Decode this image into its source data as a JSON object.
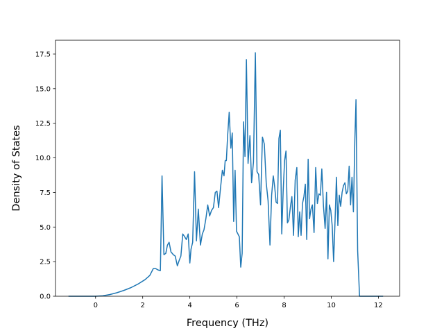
{
  "chart_data": {
    "type": "line",
    "title": "",
    "xlabel": "Frequency (THz)",
    "ylabel": "Density of States",
    "xlim": [
      -1.7,
      12.9
    ],
    "ylim": [
      0,
      18.5
    ],
    "xticks": [
      0,
      2,
      4,
      6,
      8,
      10,
      12
    ],
    "xtick_labels": [
      "0",
      "2",
      "4",
      "6",
      "8",
      "10",
      "12"
    ],
    "yticks": [
      0,
      2.5,
      5,
      7.5,
      10,
      12.5,
      15,
      17.5
    ],
    "ytick_labels": [
      "0.0",
      "2.5",
      "5.0",
      "7.5",
      "10.0",
      "12.5",
      "15.0",
      "17.5"
    ],
    "grid": false,
    "legend": "none",
    "line_color": "#1f77b4",
    "series": [
      {
        "x": [
          -1.15,
          -0.5,
          0.0,
          0.3,
          0.6,
          0.9,
          1.2,
          1.5,
          1.8,
          2.1,
          2.3,
          2.45,
          2.55,
          2.65,
          2.75,
          2.82,
          2.9,
          2.98,
          3.05,
          3.12,
          3.2,
          3.3,
          3.38,
          3.47,
          3.55,
          3.62,
          3.7,
          3.78,
          3.85,
          3.93,
          4.0,
          4.05,
          4.12,
          4.2,
          4.28,
          4.36,
          4.45,
          4.53,
          4.6,
          4.68,
          4.76,
          4.84,
          4.92,
          5.0,
          5.08,
          5.15,
          5.22,
          5.3,
          5.38,
          5.45,
          5.5,
          5.55,
          5.6,
          5.67,
          5.74,
          5.8,
          5.86,
          5.92,
          5.98,
          6.04,
          6.1,
          6.16,
          6.22,
          6.28,
          6.34,
          6.4,
          6.47,
          6.55,
          6.62,
          6.7,
          6.78,
          6.85,
          6.92,
          7.0,
          7.08,
          7.16,
          7.24,
          7.32,
          7.4,
          7.47,
          7.54,
          7.6,
          7.66,
          7.72,
          7.78,
          7.84,
          7.9,
          7.96,
          8.02,
          8.08,
          8.14,
          8.2,
          8.27,
          8.33,
          8.4,
          8.47,
          8.54,
          8.6,
          8.66,
          8.72,
          8.78,
          8.84,
          8.9,
          8.96,
          9.02,
          9.08,
          9.14,
          9.2,
          9.27,
          9.34,
          9.41,
          9.48,
          9.54,
          9.6,
          9.67,
          9.74,
          9.8,
          9.86,
          9.92,
          9.98,
          10.04,
          10.1,
          10.16,
          10.22,
          10.28,
          10.34,
          10.4,
          10.46,
          10.52,
          10.58,
          10.64,
          10.7,
          10.76,
          10.82,
          10.88,
          10.94,
          11.0,
          11.05,
          11.12,
          11.2,
          11.6,
          12.2
        ],
        "y": [
          0.0,
          0.0,
          0.0,
          0.03,
          0.12,
          0.25,
          0.42,
          0.62,
          0.88,
          1.2,
          1.5,
          2.0,
          2.0,
          1.9,
          1.85,
          8.7,
          3.0,
          3.1,
          3.7,
          3.9,
          3.2,
          3.0,
          2.9,
          2.2,
          2.6,
          2.9,
          4.5,
          4.3,
          4.1,
          4.5,
          2.4,
          3.4,
          3.9,
          9.0,
          4.0,
          6.3,
          3.7,
          4.5,
          4.8,
          5.6,
          6.6,
          5.8,
          6.2,
          6.4,
          7.5,
          7.6,
          6.4,
          7.8,
          9.1,
          8.7,
          9.8,
          9.8,
          11.5,
          13.3,
          10.7,
          11.8,
          5.4,
          9.1,
          4.7,
          4.5,
          4.3,
          2.1,
          3.1,
          12.6,
          10.1,
          17.1,
          9.6,
          11.6,
          8.2,
          9.7,
          17.6,
          9.0,
          8.8,
          6.6,
          11.5,
          11.0,
          8.2,
          6.9,
          3.7,
          7.3,
          8.7,
          7.9,
          6.8,
          6.7,
          11.4,
          12.0,
          4.5,
          7.6,
          9.8,
          10.5,
          5.3,
          5.5,
          6.5,
          7.2,
          4.4,
          8.4,
          9.3,
          4.3,
          6.1,
          4.4,
          6.7,
          7.2,
          8.1,
          4.1,
          9.9,
          5.6,
          6.3,
          6.6,
          4.6,
          9.3,
          6.7,
          7.4,
          7.3,
          9.2,
          6.5,
          4.9,
          7.5,
          2.7,
          6.6,
          6.2,
          5.1,
          2.5,
          5.4,
          8.6,
          5.1,
          7.3,
          6.5,
          7.5,
          8.0,
          8.2,
          7.4,
          7.6,
          9.4,
          6.6,
          8.6,
          6.1,
          11.2,
          14.2,
          3.3,
          0.0,
          0.0,
          0.0
        ]
      }
    ]
  }
}
